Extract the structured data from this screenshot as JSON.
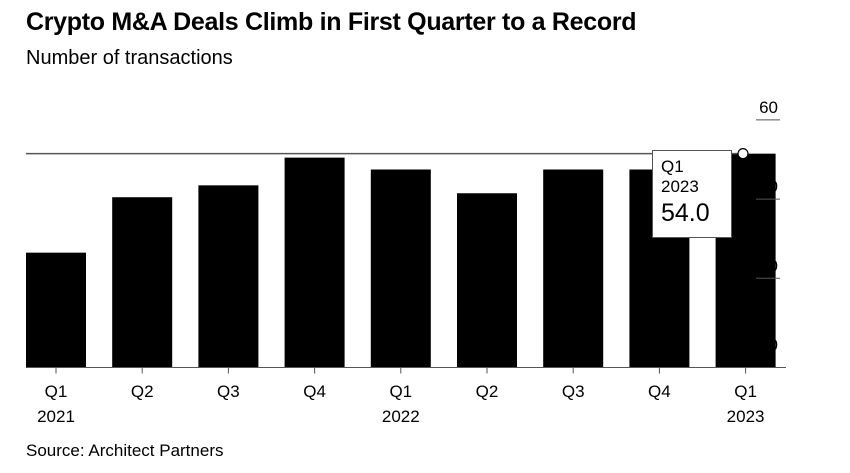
{
  "chart_data": {
    "type": "bar",
    "title": "Crypto M&A Deals Climb in First Quarter to a Record",
    "subtitle": "Number of transactions",
    "source": "Source: Architect Partners",
    "categories": [
      [
        "Q1",
        "2021"
      ],
      [
        "Q2",
        ""
      ],
      [
        "Q3",
        ""
      ],
      [
        "Q4",
        ""
      ],
      [
        "Q1",
        "2022"
      ],
      [
        "Q2",
        ""
      ],
      [
        "Q3",
        ""
      ],
      [
        "Q4",
        ""
      ],
      [
        "Q1",
        "2023"
      ]
    ],
    "values": [
      29,
      43,
      46,
      53,
      50,
      44,
      50,
      50,
      54
    ],
    "ylim": [
      0,
      60
    ],
    "yticks": [
      0,
      20,
      40,
      60
    ],
    "y_axis_side": "right",
    "reference_line": 54,
    "bar_color": "#000000",
    "tooltip": {
      "line1": "Q1",
      "line2": "2023",
      "value": "54.0"
    }
  }
}
